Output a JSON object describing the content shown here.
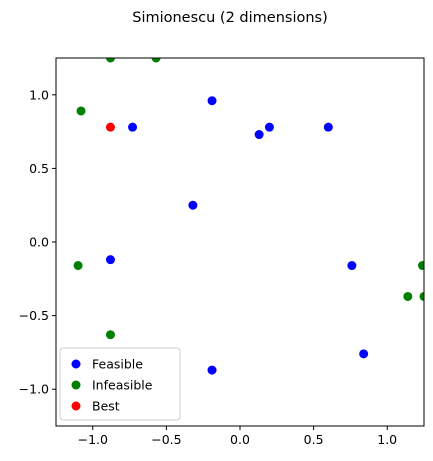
{
  "chart_data": {
    "type": "scatter",
    "title": "Simionescu (2 dimensions)",
    "xlabel": "",
    "ylabel": "",
    "xlim": [
      -1.25,
      1.25
    ],
    "ylim": [
      -1.25,
      1.25
    ],
    "xticks": [
      -1.0,
      -0.5,
      0.0,
      0.5,
      1.0
    ],
    "xtick_labels": [
      "−1.0",
      "−0.5",
      "0.0",
      "0.5",
      "1.0"
    ],
    "yticks": [
      -1.0,
      -0.5,
      0.0,
      0.5,
      1.0
    ],
    "ytick_labels": [
      "−1.0",
      "−0.5",
      "0.0",
      "0.5",
      "1.0"
    ],
    "grid": false,
    "legend_position": "lower-left",
    "series": [
      {
        "name": "Feasible",
        "color": "#0000ff",
        "points": [
          [
            -0.73,
            0.78
          ],
          [
            -0.19,
            0.96
          ],
          [
            0.13,
            0.73
          ],
          [
            0.2,
            0.78
          ],
          [
            0.6,
            0.78
          ],
          [
            -0.32,
            0.25
          ],
          [
            -0.88,
            -0.12
          ],
          [
            0.76,
            -0.16
          ],
          [
            0.84,
            -0.76
          ],
          [
            -0.19,
            -0.87
          ]
        ]
      },
      {
        "name": "Infeasible",
        "color": "#008000",
        "points": [
          [
            -0.88,
            1.25
          ],
          [
            -0.57,
            1.25
          ],
          [
            -1.08,
            0.89
          ],
          [
            -1.1,
            -0.16
          ],
          [
            -0.88,
            -0.63
          ],
          [
            1.24,
            -0.16
          ],
          [
            1.14,
            -0.37
          ],
          [
            1.25,
            -0.37
          ]
        ]
      },
      {
        "name": "Best",
        "color": "#ff0000",
        "points": [
          [
            -0.88,
            0.78
          ]
        ]
      }
    ]
  }
}
